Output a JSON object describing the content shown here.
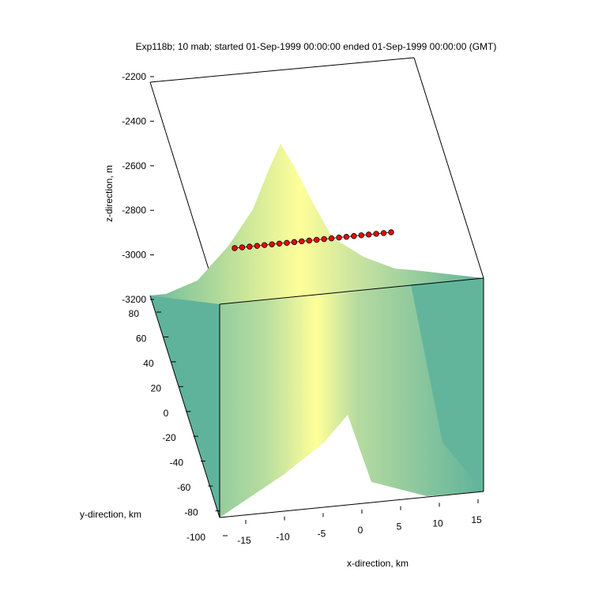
{
  "chart_data": {
    "type": "surface3d",
    "title": "Exp118b; 10 mab; started 01-Sep-1999 00:00:00 ended 01-Sep-1999 00:00:00 (GMT)",
    "xlabel": "x-direction, km",
    "ylabel": "y-direction, km",
    "zlabel": "z-direction, m",
    "xlim": [
      -18,
      18
    ],
    "ylim": [
      -100,
      100
    ],
    "zlim": [
      -3200,
      -2200
    ],
    "xticks": [
      -15,
      -10,
      -5,
      0,
      5,
      10,
      15
    ],
    "yticks": [
      -100,
      -80,
      -60,
      -40,
      -20,
      0,
      20,
      40,
      60,
      80
    ],
    "zticks": [
      -2200,
      -2400,
      -2600,
      -2800,
      -3000,
      -3200
    ],
    "surface": {
      "description_values": "seamount: peak near (x=0, y=0, z=-2500), base depth -3200",
      "peak": {
        "x": 0,
        "y": 0,
        "z": -2500
      },
      "base_z": -3200,
      "colormap": [
        "#5fb39b",
        "#ffff99"
      ]
    },
    "series": [
      {
        "marker_color": "#ff0000",
        "edge_color": "#000000",
        "points_count": 22,
        "x_range": [
          -15,
          15
        ],
        "y": 0,
        "z": -2700
      }
    ]
  }
}
